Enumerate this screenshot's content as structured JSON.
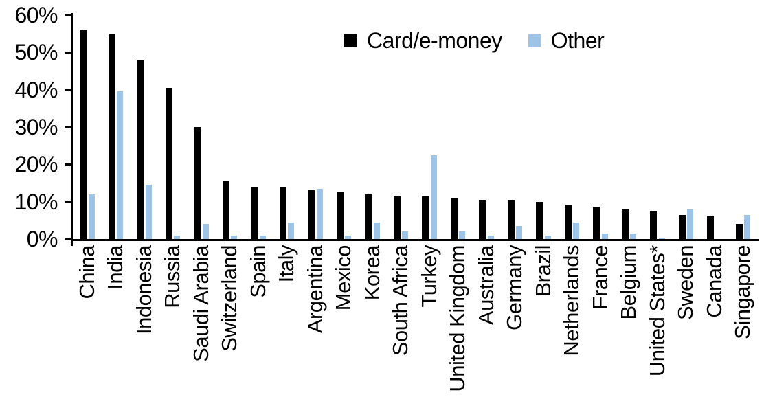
{
  "chart_data": {
    "type": "bar",
    "title": "",
    "categories": [
      "China",
      "India",
      "Indonesia",
      "Russia",
      "Saudi Arabia",
      "Switzerland",
      "Spain",
      "Italy",
      "Argentina",
      "Mexico",
      "Korea",
      "South Africa",
      "Turkey",
      "United Kingdom",
      "Australia",
      "Germany",
      "Brazil",
      "Netherlands",
      "France",
      "Belgium",
      "United States*",
      "Sweden",
      "Canada",
      "Singapore"
    ],
    "series": [
      {
        "name": "Card/e-money",
        "color": "#000000",
        "values": [
          56,
          55,
          48,
          40.5,
          30,
          15.5,
          14,
          14,
          13,
          12.5,
          12,
          11.5,
          11.5,
          11,
          10.5,
          10.5,
          10,
          9,
          8.5,
          8,
          7.5,
          6.5,
          6,
          4
        ]
      },
      {
        "name": "Other",
        "color": "#9DC3E6",
        "values": [
          12,
          39.5,
          14.5,
          1,
          4,
          1,
          1,
          4.5,
          13.5,
          1,
          4.5,
          2,
          22.5,
          2,
          1,
          3.5,
          1,
          4.5,
          1.5,
          1.5,
          0.3,
          8,
          0,
          6.5
        ]
      }
    ],
    "xlabel": "",
    "ylabel": "",
    "ylim": [
      0,
      60
    ],
    "ytick_step": 10,
    "ytick_labels": [
      "0%",
      "10%",
      "20%",
      "30%",
      "40%",
      "50%",
      "60%"
    ],
    "value_unit": "percent",
    "grid": false,
    "legend_position": "top-center"
  }
}
